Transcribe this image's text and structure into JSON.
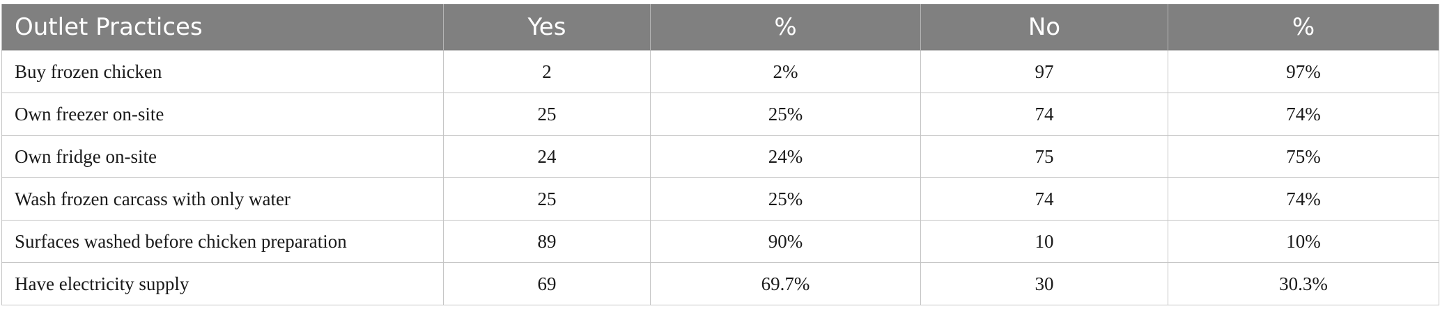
{
  "table": {
    "headers": [
      "Outlet Practices",
      "Yes",
      "%",
      "No",
      "%"
    ],
    "rows": [
      [
        "Buy frozen chicken",
        "2",
        "2%",
        "97",
        "97%"
      ],
      [
        "Own freezer on-site",
        "25",
        "25%",
        "74",
        "74%"
      ],
      [
        "Own fridge on-site",
        "24",
        "24%",
        "75",
        "75%"
      ],
      [
        "Wash frozen carcass with only water",
        "25",
        "25%",
        "74",
        "74%"
      ],
      [
        "Surfaces washed before chicken preparation",
        "89",
        "90%",
        "10",
        "10%"
      ],
      [
        "Have electricity supply",
        "69",
        "69.7%",
        "30",
        "30.3%"
      ]
    ]
  }
}
